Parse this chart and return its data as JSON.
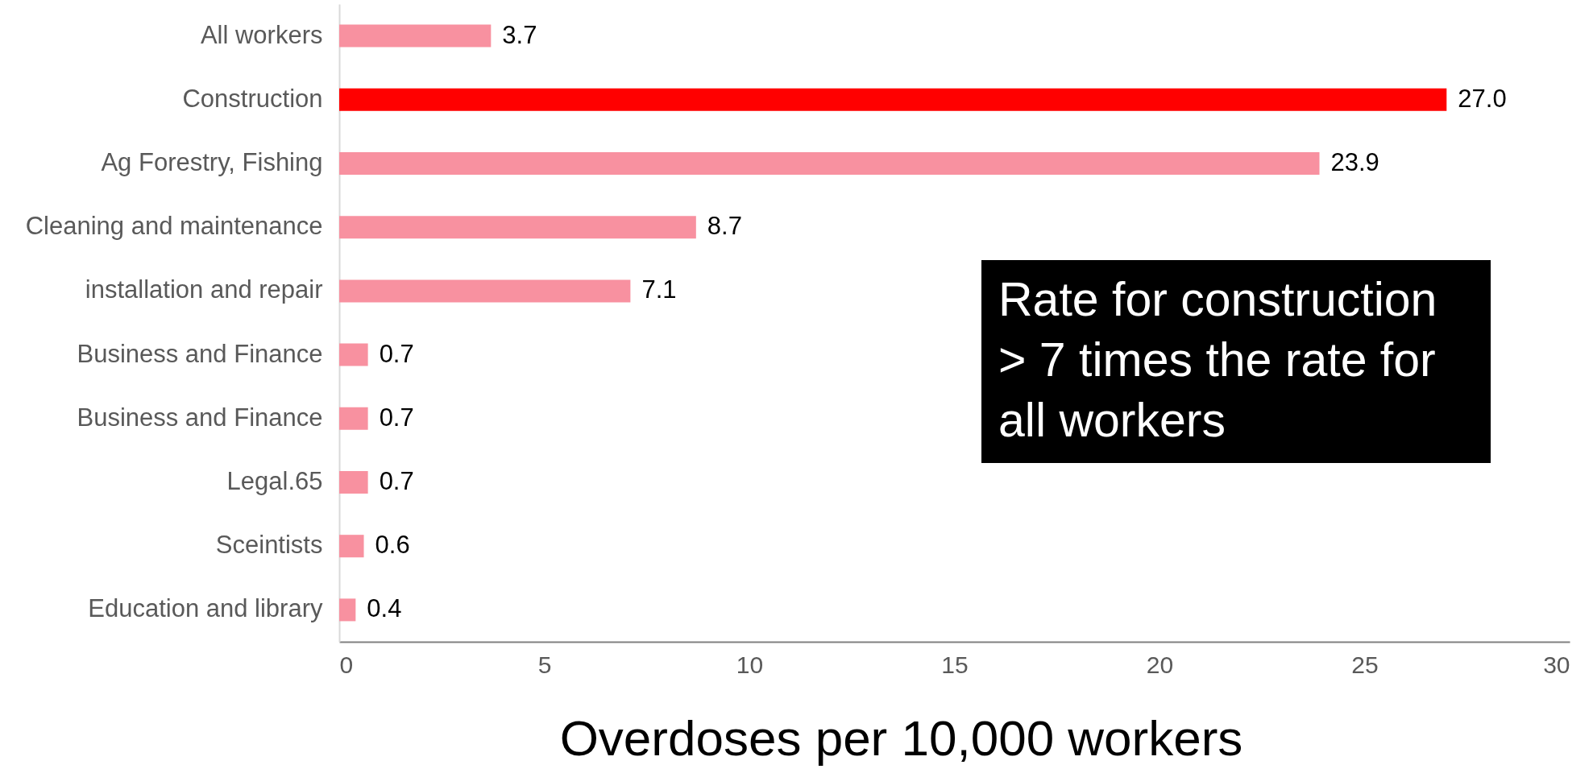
{
  "chart_data": {
    "type": "bar",
    "orientation": "horizontal",
    "xlabel": "Overdoses per 10,000 workers",
    "categories": [
      "All workers",
      "Construction",
      "Ag Forestry, Fishing",
      "Cleaning and maintenance",
      "installation and repair",
      "Business and Finance",
      "Business and Finance",
      "Legal.65",
      "Sceintists",
      "Education and library"
    ],
    "values": [
      3.7,
      27.0,
      23.9,
      8.7,
      7.1,
      0.7,
      0.7,
      0.7,
      0.6,
      0.4
    ],
    "value_labels": [
      "3.7",
      "27.0",
      "23.9",
      "8.7",
      "7.1",
      "0.7",
      "0.7",
      "0.7",
      "0.6",
      "0.4"
    ],
    "colors": [
      "#f891a0",
      "#ff0000",
      "#f891a0",
      "#f891a0",
      "#f891a0",
      "#f891a0",
      "#f891a0",
      "#f891a0",
      "#f891a0",
      "#f891a0"
    ],
    "xlim": [
      0,
      30
    ],
    "xticks": [
      0,
      5,
      10,
      15,
      20,
      25,
      30
    ],
    "annotations": [
      "Rate for construction > 7 times the rate for all workers"
    ]
  }
}
